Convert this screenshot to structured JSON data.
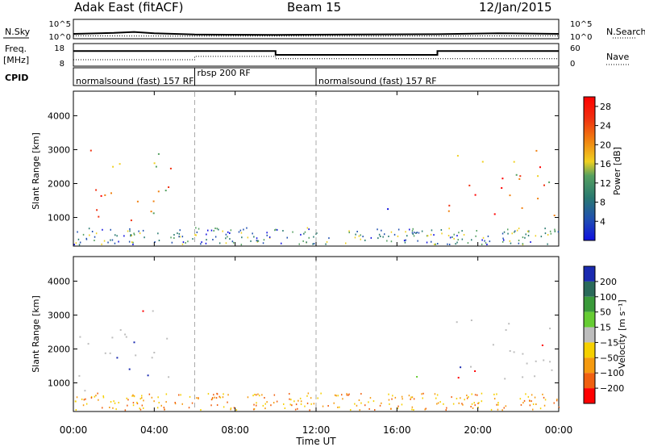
{
  "header": {
    "station": "Adak East (fitACF)",
    "beam": "Beam 15",
    "date": "12/Jan/2015"
  },
  "chart_data": [
    {
      "type": "line",
      "panel": "noise",
      "left_label": "N.Sky",
      "right_label": "N.Search",
      "y_ticks_left": [
        "10^5",
        "10^0"
      ],
      "y_ticks_right": [
        "10^5",
        "10^0"
      ],
      "x_range_hours": [
        0,
        24
      ],
      "series": [
        {
          "values": [
            [
              0,
              1.0
            ],
            [
              2,
              1.3
            ],
            [
              3,
              1.6
            ],
            [
              4,
              1.2
            ],
            [
              6,
              0.8
            ],
            [
              10,
              0.7
            ],
            [
              14,
              0.8
            ],
            [
              18,
              0.9
            ],
            [
              21,
              1.2
            ],
            [
              24,
              1.0
            ]
          ]
        },
        {
          "values": [
            [
              0,
              0.4
            ],
            [
              6,
              0.3
            ],
            [
              12,
              0.3
            ],
            [
              18,
              0.35
            ],
            [
              24,
              0.4
            ]
          ]
        }
      ]
    },
    {
      "type": "line",
      "panel": "frequency",
      "left_label": "Freq.",
      "left_unit": "[MHz]",
      "right_label": "Nave",
      "y_ticks_left": [
        "18",
        "8"
      ],
      "y_ticks_right": [
        "60",
        "0"
      ],
      "y_range_left": [
        8,
        18
      ],
      "x_range_hours": [
        0,
        24
      ],
      "series": [
        {
          "values": [
            [
              0,
              15.0
            ],
            [
              10,
              15.0
            ],
            [
              10,
              13.0
            ],
            [
              18,
              13.0
            ],
            [
              18,
              15.0
            ],
            [
              24,
              15.0
            ]
          ]
        },
        {
          "values": [
            [
              0,
              10.5
            ],
            [
              6,
              10.5
            ],
            [
              6,
              12.2
            ],
            [
              10,
              12.2
            ],
            [
              10,
              11.0
            ],
            [
              24,
              11.0
            ]
          ]
        }
      ]
    },
    {
      "type": "table",
      "panel": "cpid",
      "label": "CPID",
      "segments": [
        {
          "start": 0,
          "end": 6,
          "name": "normalsound (fast) 157 RF"
        },
        {
          "start": 6,
          "end": 12,
          "name": "rbsp 200 RF"
        },
        {
          "start": 12,
          "end": 24,
          "name": "normalsound (fast) 157 RF"
        }
      ]
    },
    {
      "type": "heatmap",
      "panel": "power",
      "ylabel": "Slant Range [km]",
      "y_ticks": [
        1000,
        2000,
        3000,
        4000
      ],
      "ylim": [
        180,
        4700
      ],
      "x_range_hours": [
        0,
        24
      ],
      "colorbar_label": "Power [dB]",
      "colorbar_ticks": [
        4,
        8,
        12,
        16,
        20,
        24,
        28
      ],
      "colorbar_range": [
        0,
        30
      ],
      "colors": [
        "#1010e0",
        "#2050b0",
        "#2a7a70",
        "#55a060",
        "#f0d020",
        "#f08010",
        "#f03010",
        "#ff0000"
      ],
      "regions": [
        {
          "t": [
            0,
            4.8
          ],
          "r": [
            700,
            3300
          ],
          "level": 0.7
        },
        {
          "t": [
            8.9,
            9.3
          ],
          "r": [
            800,
            1000
          ],
          "level": 0.1
        },
        {
          "t": [
            15.5,
            17.9
          ],
          "r": [
            1200,
            1450
          ],
          "level": 0.1
        },
        {
          "t": [
            18.5,
            24
          ],
          "r": [
            600,
            3000
          ],
          "level": 0.75
        }
      ]
    },
    {
      "type": "heatmap",
      "panel": "velocity",
      "xlabel": "Time UT",
      "ylabel": "Slant Range [km]",
      "y_ticks": [
        1000,
        2000,
        3000,
        4000
      ],
      "ylim": [
        180,
        4700
      ],
      "x_ticks": [
        "00:00",
        "04:00",
        "08:00",
        "12:00",
        "16:00",
        "20:00",
        "00:00"
      ],
      "x_range_hours": [
        0,
        24
      ],
      "colorbar_label": "Velocity [m s⁻¹]",
      "colorbar_ticks": [
        "200",
        "100",
        "50",
        "15",
        "−15",
        "−50",
        "−100",
        "−200"
      ],
      "colors": [
        "#1a2ab0",
        "#2a6a5a",
        "#3a9a3a",
        "#66cc33",
        "#bdbdbd",
        "#f5d000",
        "#f59a10",
        "#f06010",
        "#ff0000"
      ],
      "regions": [
        {
          "t": [
            0,
            4.8
          ],
          "r": [
            700,
            3300
          ],
          "class": 4
        },
        {
          "t": [
            15.5,
            17.9
          ],
          "r": [
            1200,
            1450
          ],
          "class": 3
        },
        {
          "t": [
            18.5,
            24
          ],
          "r": [
            600,
            3000
          ],
          "class": 4
        }
      ]
    }
  ]
}
